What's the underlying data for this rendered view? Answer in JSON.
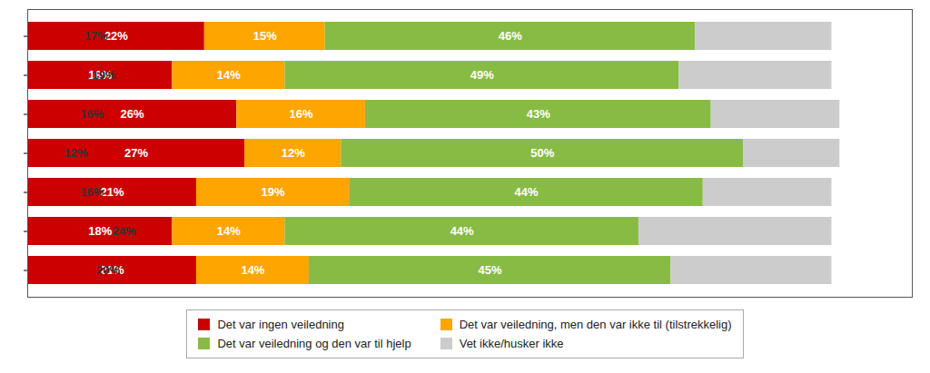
{
  "chart_data": {
    "type": "bar",
    "orientation": "horizontal",
    "stacked": true,
    "categories": [
      null,
      null,
      null,
      null,
      null,
      null,
      null
    ],
    "series": [
      {
        "name": "Det var ingen veiledning",
        "color": "#cc0000",
        "values": [
          22,
          18,
          26,
          27,
          21,
          18,
          21
        ],
        "value_labels": [
          "22%",
          "18%",
          "26%",
          "27%",
          "21%",
          "18%",
          "21%"
        ]
      },
      {
        "name": "Det var veiledning, men den var ikke til (tilstrekkelig)",
        "color": "#ffa500",
        "values": [
          15,
          14,
          16,
          12,
          19,
          14,
          14
        ],
        "value_labels": [
          "15%",
          "14%",
          "16%",
          "12%",
          "19%",
          "14%",
          "14%"
        ]
      },
      {
        "name": "Det var veiledning og den var til hjelp",
        "color": "#88bb44",
        "values": [
          46,
          49,
          43,
          50,
          44,
          44,
          45
        ],
        "value_labels": [
          "46%",
          "49%",
          "43%",
          "50%",
          "44%",
          "44%",
          "45%"
        ]
      },
      {
        "name": "Vet ikke/husker ikke",
        "color": "#cccccc",
        "values": [
          17,
          19,
          16,
          12,
          16,
          24,
          20
        ],
        "value_labels": [
          "17%",
          "19%",
          "16%",
          "12%",
          "16%",
          "24%",
          "20%"
        ]
      }
    ],
    "xlim": [
      0,
      110
    ],
    "xticks": [],
    "data_labels": true,
    "tick_labels": false,
    "grid": false,
    "legend": "bottom"
  }
}
